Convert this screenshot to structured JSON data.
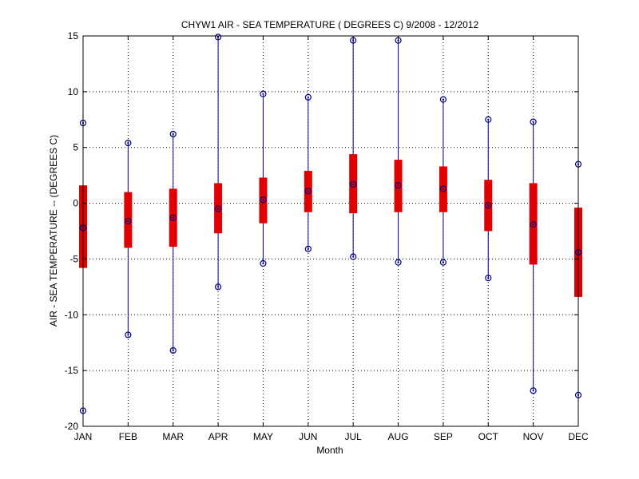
{
  "chart_data": {
    "type": "boxplot",
    "title": "CHYW1  AIR - SEA TEMPERATURE ( DEGREES C) 9/2008 - 12/2012",
    "xlabel": "Month",
    "ylabel": "AIR - SEA TEMPERATURE -- (DEGREES C)",
    "ylim": [
      -20,
      15
    ],
    "yticks": [
      -20,
      -15,
      -10,
      -5,
      0,
      5,
      10,
      15
    ],
    "grid": true,
    "categories": [
      "JAN",
      "FEB",
      "MAR",
      "APR",
      "MAY",
      "JUN",
      "JUL",
      "AUG",
      "SEP",
      "OCT",
      "NOV",
      "DEC"
    ],
    "series": [
      {
        "values": [
          {
            "min": -18.6,
            "q1": -5.8,
            "median": -2.2,
            "q3": 1.6,
            "max": 7.2
          },
          {
            "min": -11.8,
            "q1": -4.0,
            "median": -1.6,
            "q3": 1.0,
            "max": 5.4
          },
          {
            "min": -13.2,
            "q1": -3.9,
            "median": -1.3,
            "q3": 1.3,
            "max": 6.2
          },
          {
            "min": -7.5,
            "q1": -2.7,
            "median": -0.5,
            "q3": 1.8,
            "max": 14.9
          },
          {
            "min": -5.4,
            "q1": -1.8,
            "median": 0.3,
            "q3": 2.3,
            "max": 9.8
          },
          {
            "min": -4.1,
            "q1": -0.8,
            "median": 1.1,
            "q3": 2.9,
            "max": 9.5
          },
          {
            "min": -4.8,
            "q1": -0.9,
            "median": 1.7,
            "q3": 4.4,
            "max": 14.6
          },
          {
            "min": -5.3,
            "q1": -0.8,
            "median": 1.6,
            "q3": 3.9,
            "max": 14.6
          },
          {
            "min": -5.3,
            "q1": -0.8,
            "median": 1.3,
            "q3": 3.3,
            "max": 9.3
          },
          {
            "min": -6.7,
            "q1": -2.5,
            "median": -0.2,
            "q3": 2.1,
            "max": 7.5
          },
          {
            "min": -16.8,
            "q1": -5.5,
            "median": -1.9,
            "q3": 1.8,
            "max": 7.3
          },
          {
            "min": -17.2,
            "q1": -8.4,
            "median": -4.4,
            "q3": -0.4,
            "max": 3.5
          }
        ]
      }
    ],
    "colors": {
      "whisker": "#0000a0",
      "box": "#e00000",
      "marker": "#000080",
      "grid": "#000000"
    }
  }
}
